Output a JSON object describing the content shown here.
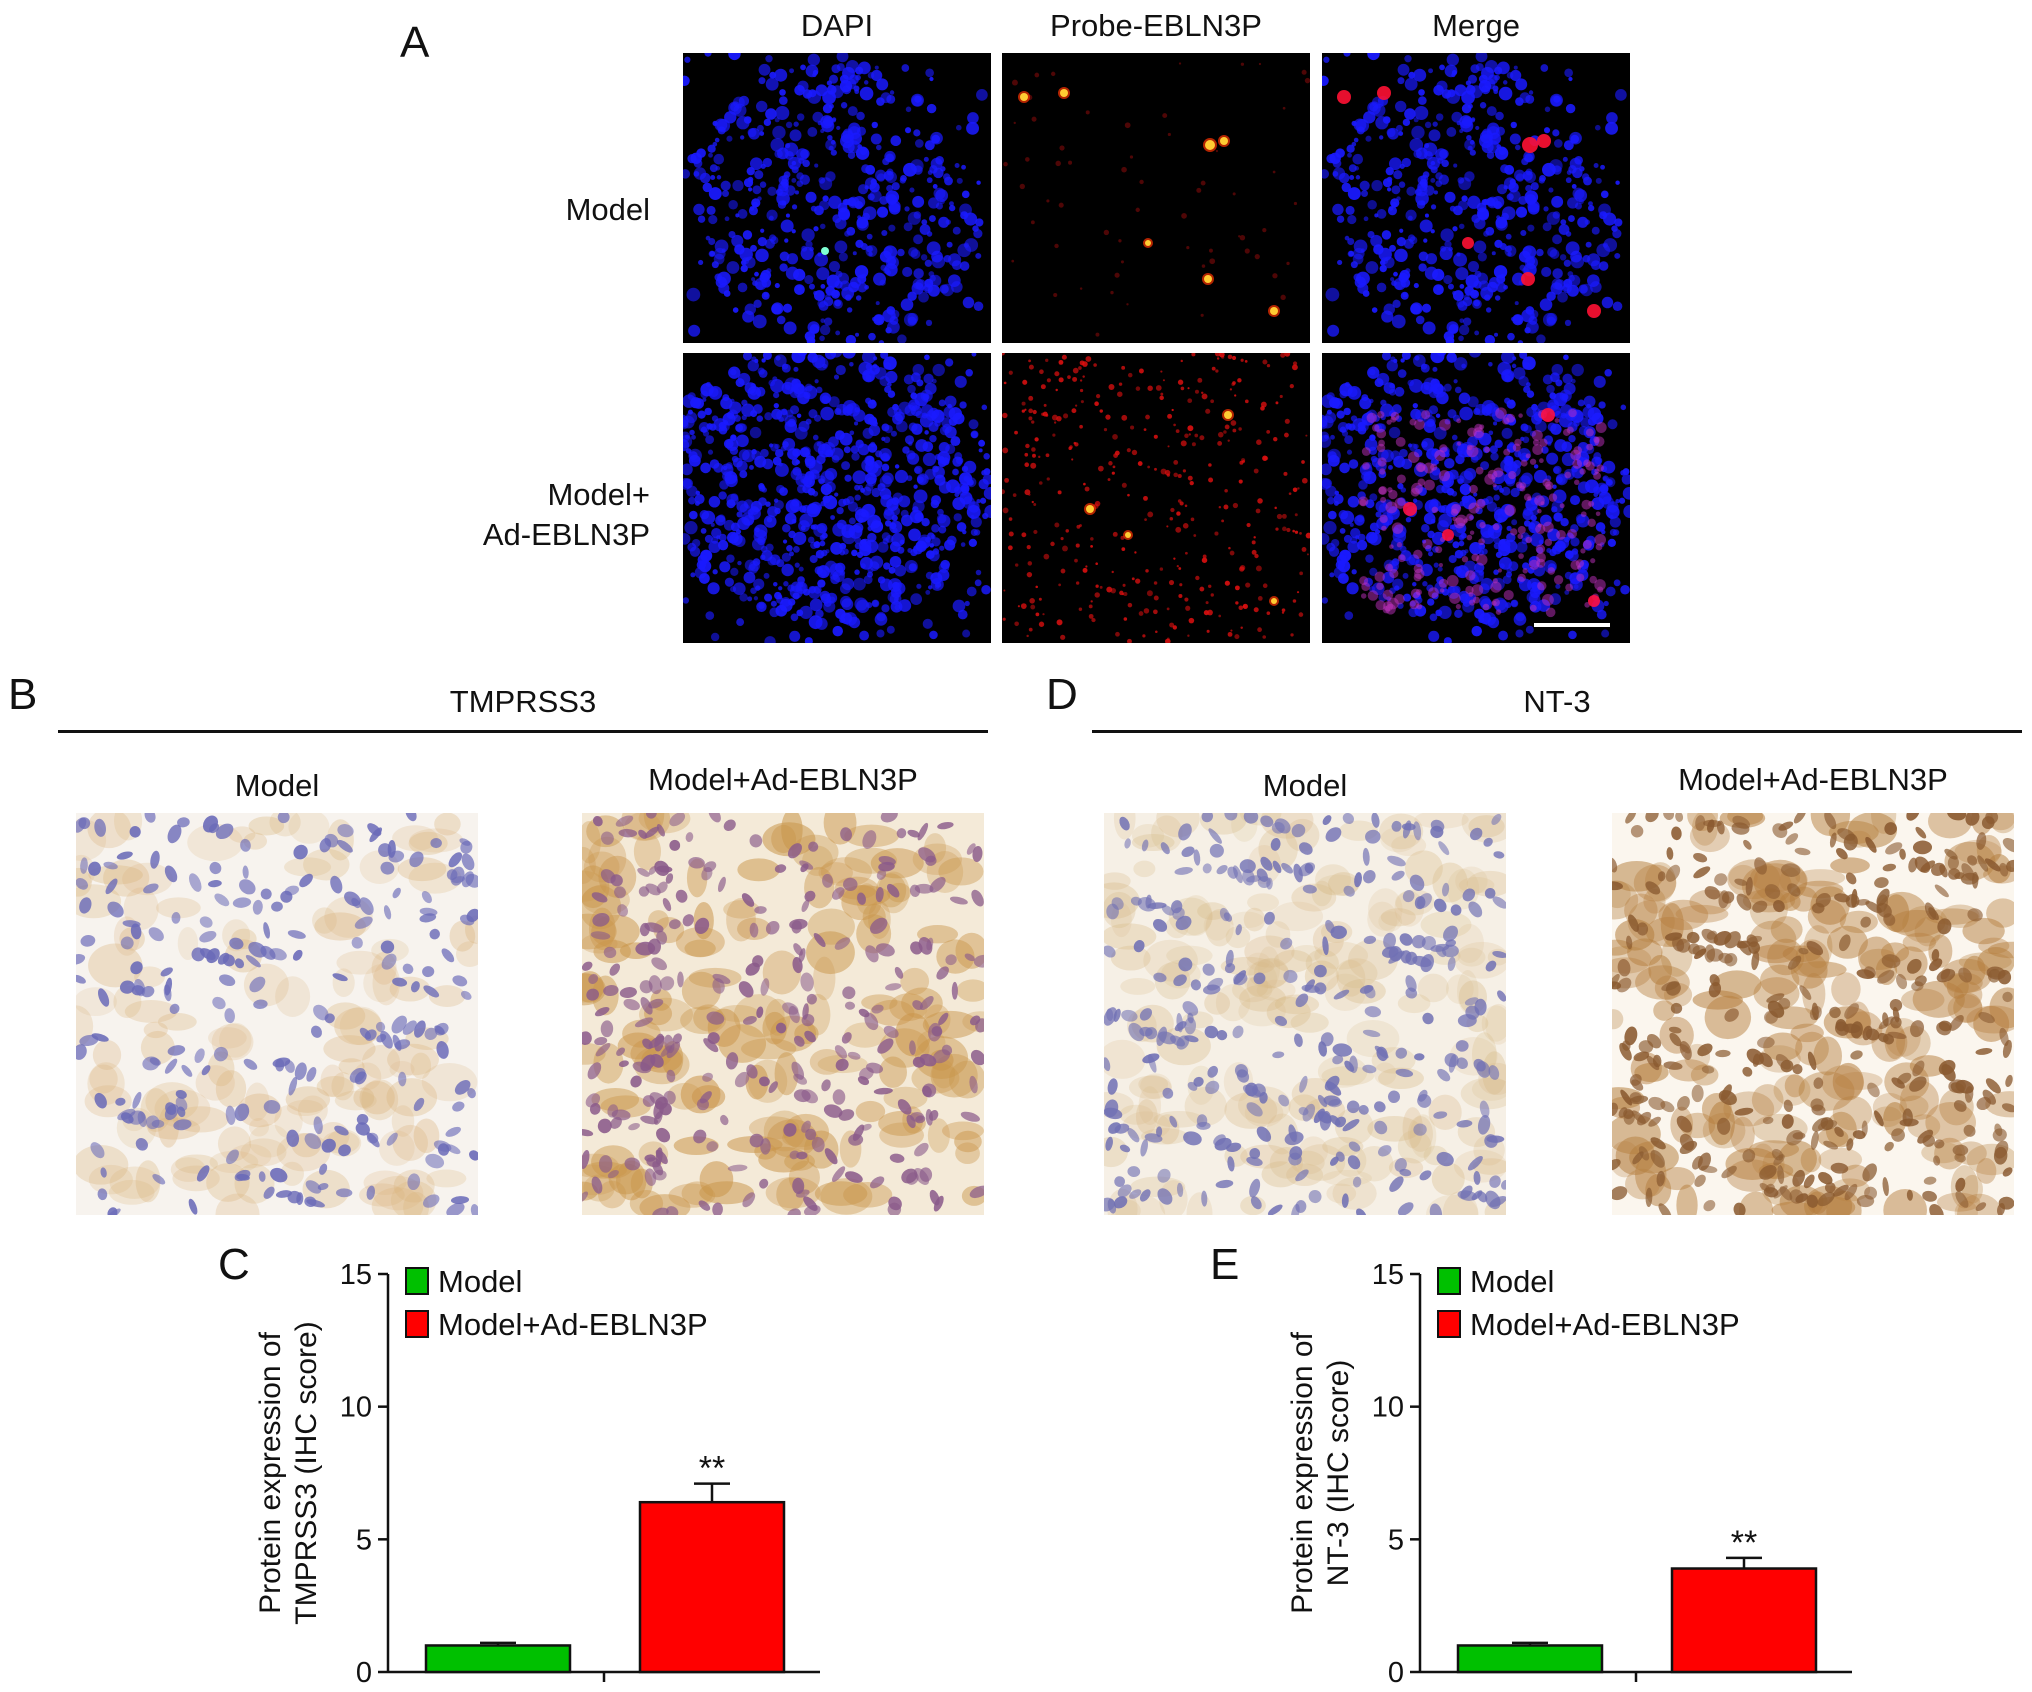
{
  "panelA": {
    "letter": "A",
    "col_labels": [
      "DAPI",
      "Probe-EBLN3P",
      "Merge"
    ],
    "row_labels": [
      [
        "Model"
      ],
      [
        "Model+",
        "Ad-EBLN3P"
      ]
    ]
  },
  "panelB": {
    "letter": "B",
    "title": "TMPRSS3",
    "labels": [
      "Model",
      "Model+Ad-EBLN3P"
    ]
  },
  "panelD": {
    "letter": "D",
    "title": "NT-3",
    "labels": [
      "Model",
      "Model+Ad-EBLN3P"
    ]
  },
  "colors": {
    "model": "#00c000",
    "treated": "#ff0000",
    "dapi": "#1a1aff",
    "probe": "#e01010"
  },
  "chart_data": [
    {
      "letter": "C",
      "type": "bar",
      "categories": [
        "Model",
        "Model+Ad-EBLN3P"
      ],
      "values": [
        1.0,
        6.4
      ],
      "errors": [
        0.1,
        0.7
      ],
      "significance": [
        "",
        "**"
      ],
      "legend": [
        "Model",
        "Model+Ad-EBLN3P"
      ],
      "ylabel": [
        "Protein expression of",
        "TMPRSS3 (IHC score)"
      ],
      "ylim": [
        0,
        15
      ],
      "yticks": [
        0,
        5,
        10,
        15
      ],
      "colors": [
        "#00c000",
        "#ff0000"
      ],
      "legend_position": "top-left"
    },
    {
      "letter": "E",
      "type": "bar",
      "categories": [
        "Model",
        "Model+Ad-EBLN3P"
      ],
      "values": [
        1.0,
        3.9
      ],
      "errors": [
        0.1,
        0.4
      ],
      "significance": [
        "",
        "**"
      ],
      "legend": [
        "Model",
        "Model+Ad-EBLN3P"
      ],
      "ylabel": [
        "Protein expression of",
        "NT-3 (IHC score)"
      ],
      "ylim": [
        0,
        15
      ],
      "yticks": [
        0,
        5,
        10,
        15
      ],
      "colors": [
        "#00c000",
        "#ff0000"
      ],
      "legend_position": "top-left"
    }
  ]
}
